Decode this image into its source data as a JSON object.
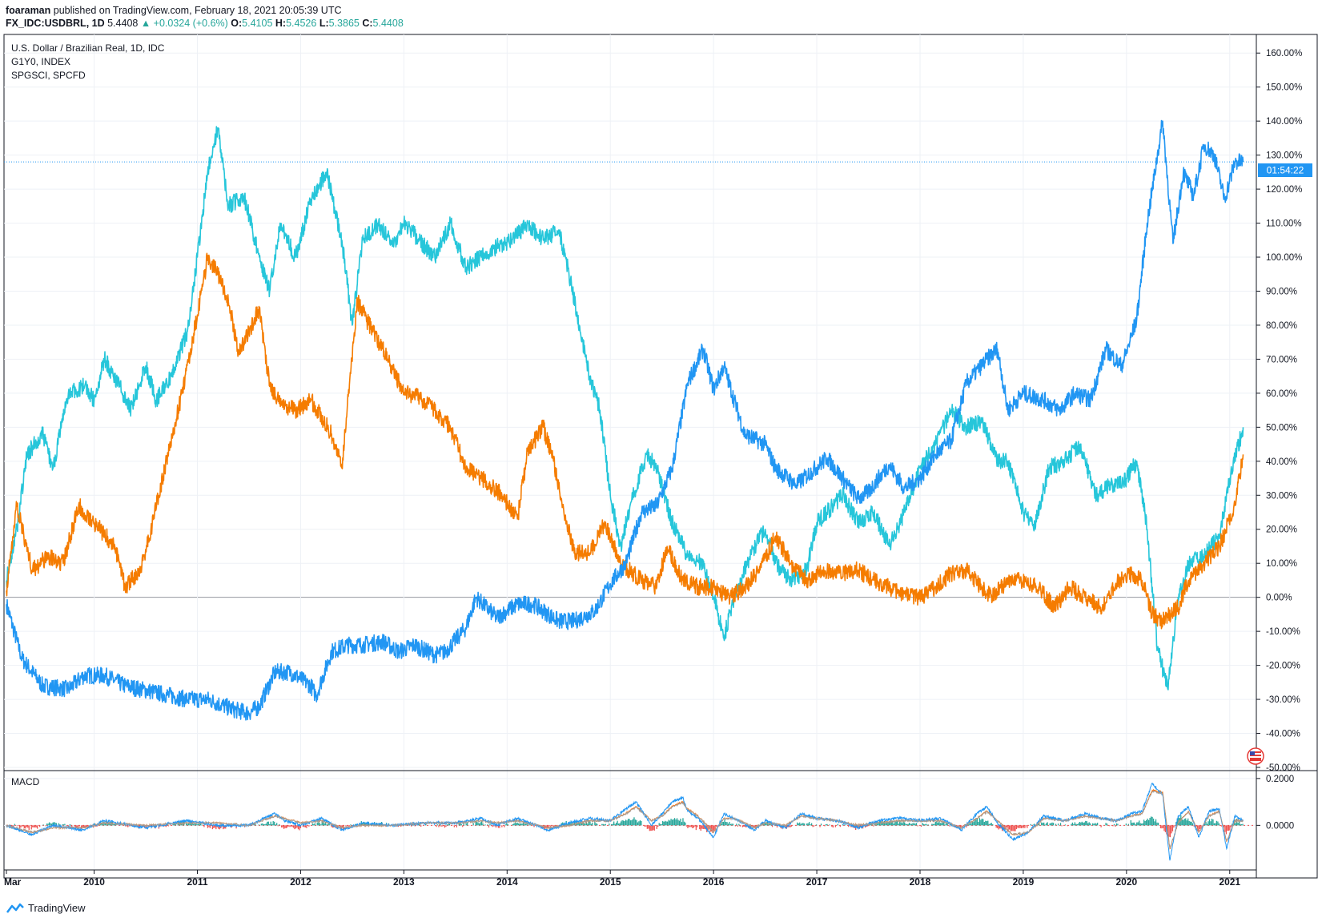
{
  "header": {
    "author": "foaraman",
    "published_text": "published on TradingView.com, February 18, 2021 20:05:39 UTC",
    "symbol": "FX_IDC:USDBRL, 1D",
    "last": "5.4408",
    "change": "▲ +0.0324 (+0.6%)",
    "o_label": "O:",
    "o_value": "5.4105",
    "h_label": "H:",
    "h_value": "5.4526",
    "l_label": "L:",
    "l_value": "5.3865",
    "c_label": "C:",
    "c_value": "5.4408"
  },
  "legend": {
    "main": "U.S. Dollar / Brazilian Real, 1D, IDC",
    "comp1": "G1Y0, INDEX",
    "comp2": "SPGSCI, SPCFD"
  },
  "price_tag": "01:54:22",
  "macd_label": "MACD",
  "macd_ticks": [
    "0.2000",
    "0.0000"
  ],
  "footer": {
    "brand": "TradingView"
  },
  "colors": {
    "usdbrl": "#2196f3",
    "g1y0": "#f57c00",
    "spgsci": "#26c6da",
    "macd_line": "#2196f3",
    "signal_line": "#ff6d00",
    "hist_pos": "#26a69a",
    "hist_neg": "#ef5350"
  },
  "chart_data": {
    "type": "line",
    "title": "U.S. Dollar / Brazilian Real, 1D, IDC",
    "x_tick_labels": [
      "Mar",
      "2010",
      "2011",
      "2012",
      "2013",
      "2014",
      "2015",
      "2016",
      "2017",
      "2018",
      "2019",
      "2020",
      "2021"
    ],
    "x_ticks_year": [
      2009.15,
      2010,
      2011,
      2012,
      2013,
      2014,
      2015,
      2016,
      2017,
      2018,
      2019,
      2020,
      2021
    ],
    "y_tick_values": [
      160,
      150,
      140,
      130,
      120,
      110,
      100,
      90,
      80,
      70,
      60,
      50,
      40,
      30,
      20,
      10,
      0,
      -10,
      -20,
      -30,
      -40,
      -50
    ],
    "y_tick_labels": [
      "160.00%",
      "150.00%",
      "140.00%",
      "130.00%",
      "120.00%",
      "110.00%",
      "100.00%",
      "90.00%",
      "80.00%",
      "70.00%",
      "60.00%",
      "50.00%",
      "40.00%",
      "30.00%",
      "20.00%",
      "10.00%",
      "0.00%",
      "-10.00%",
      "-20.00%",
      "-30.00%",
      "-40.00%",
      "-50.00%"
    ],
    "ylim": [
      -50,
      165
    ],
    "xlim": [
      2009.15,
      2021.25
    ],
    "y_unit": "percent change",
    "grid": true,
    "series": [
      {
        "name": "U.S. Dollar / Brazilian Real, 1D, IDC",
        "color": "#2196f3",
        "x": [
          2009.15,
          2009.3,
          2009.5,
          2009.75,
          2009.9,
          2010.1,
          2010.3,
          2010.6,
          2010.9,
          2011.1,
          2011.35,
          2011.5,
          2011.6,
          2011.75,
          2011.9,
          2012.1,
          2012.15,
          2012.3,
          2012.45,
          2012.6,
          2012.8,
          2012.95,
          2013.1,
          2013.3,
          2013.4,
          2013.6,
          2013.7,
          2013.9,
          2014.1,
          2014.25,
          2014.5,
          2014.65,
          2014.85,
          2015.0,
          2015.15,
          2015.3,
          2015.45,
          2015.6,
          2015.75,
          2015.9,
          2016.0,
          2016.1,
          2016.3,
          2016.5,
          2016.6,
          2016.8,
          2016.95,
          2017.1,
          2017.3,
          2017.4,
          2017.5,
          2017.7,
          2017.85,
          2018.0,
          2018.15,
          2018.3,
          2018.45,
          2018.65,
          2018.75,
          2018.85,
          2019.0,
          2019.2,
          2019.35,
          2019.5,
          2019.65,
          2019.8,
          2019.95,
          2020.0,
          2020.1,
          2020.2,
          2020.35,
          2020.45,
          2020.55,
          2020.65,
          2020.75,
          2020.85,
          2020.95,
          2021.05,
          2021.13
        ],
        "y": [
          -2,
          -18,
          -26,
          -27,
          -23,
          -23,
          -26,
          -28,
          -30,
          -30,
          -33,
          -34,
          -32,
          -22,
          -22,
          -26,
          -29,
          -16,
          -14,
          -14,
          -13,
          -16,
          -14,
          -17,
          -16,
          -9,
          0,
          -6,
          -2,
          -2,
          -7,
          -7,
          -4,
          4,
          10,
          25,
          27,
          38,
          63,
          73,
          61,
          68,
          48,
          45,
          38,
          33,
          37,
          41,
          33,
          29,
          31,
          39,
          32,
          35,
          42,
          46,
          63,
          70,
          73,
          55,
          60,
          58,
          55,
          60,
          58,
          73,
          68,
          72,
          82,
          110,
          140,
          104,
          125,
          118,
          133,
          130,
          117,
          128,
          128
        ]
      },
      {
        "name": "G1Y0, INDEX",
        "color": "#f57c00",
        "x": [
          2009.15,
          2009.25,
          2009.4,
          2009.55,
          2009.7,
          2009.85,
          2010.0,
          2010.2,
          2010.3,
          2010.45,
          2010.55,
          2010.7,
          2010.85,
          2011.0,
          2011.1,
          2011.2,
          2011.3,
          2011.4,
          2011.5,
          2011.6,
          2011.7,
          2011.8,
          2011.95,
          2012.1,
          2012.3,
          2012.4,
          2012.45,
          2012.55,
          2012.7,
          2012.85,
          2013.0,
          2013.15,
          2013.3,
          2013.45,
          2013.6,
          2013.8,
          2013.95,
          2014.1,
          2014.2,
          2014.35,
          2014.45,
          2014.55,
          2014.65,
          2014.8,
          2014.95,
          2015.1,
          2015.3,
          2015.45,
          2015.55,
          2015.7,
          2015.85,
          2016.0,
          2016.15,
          2016.3,
          2016.45,
          2016.6,
          2016.75,
          2016.9,
          2017.05,
          2017.2,
          2017.4,
          2017.55,
          2017.7,
          2017.85,
          2018.0,
          2018.15,
          2018.3,
          2018.45,
          2018.6,
          2018.7,
          2018.85,
          2019.0,
          2019.15,
          2019.3,
          2019.45,
          2019.6,
          2019.75,
          2019.9,
          2020.05,
          2020.15,
          2020.25,
          2020.35,
          2020.5,
          2020.6,
          2020.75,
          2020.9,
          2021.05,
          2021.13
        ],
        "y": [
          2,
          27,
          8,
          12,
          10,
          27,
          22,
          15,
          3,
          8,
          20,
          40,
          60,
          83,
          100,
          95,
          87,
          72,
          78,
          85,
          62,
          57,
          55,
          58,
          48,
          38,
          55,
          87,
          78,
          70,
          60,
          59,
          55,
          50,
          38,
          34,
          30,
          23,
          43,
          50,
          40,
          25,
          13,
          13,
          22,
          10,
          5,
          3,
          15,
          5,
          3,
          3,
          0,
          3,
          8,
          18,
          10,
          5,
          8,
          7,
          8,
          5,
          3,
          1,
          0,
          3,
          7,
          8,
          3,
          0,
          5,
          5,
          3,
          -3,
          3,
          0,
          -3,
          4,
          7,
          5,
          -5,
          -7,
          -3,
          5,
          10,
          15,
          27,
          42
        ]
      },
      {
        "name": "SPGSCI, SPCFD",
        "color": "#26c6da",
        "x": [
          2009.15,
          2009.25,
          2009.35,
          2009.5,
          2009.6,
          2009.75,
          2009.9,
          2010.0,
          2010.1,
          2010.25,
          2010.35,
          2010.5,
          2010.6,
          2010.75,
          2010.9,
          2011.0,
          2011.1,
          2011.2,
          2011.3,
          2011.45,
          2011.6,
          2011.7,
          2011.8,
          2011.95,
          2012.1,
          2012.25,
          2012.4,
          2012.5,
          2012.6,
          2012.75,
          2012.9,
          2013.0,
          2013.15,
          2013.3,
          2013.45,
          2013.6,
          2013.75,
          2013.9,
          2014.05,
          2014.2,
          2014.35,
          2014.5,
          2014.6,
          2014.7,
          2014.8,
          2014.9,
          2015.0,
          2015.1,
          2015.2,
          2015.35,
          2015.45,
          2015.6,
          2015.75,
          2015.9,
          2016.0,
          2016.1,
          2016.2,
          2016.35,
          2016.5,
          2016.6,
          2016.75,
          2016.9,
          2017.0,
          2017.1,
          2017.25,
          2017.4,
          2017.55,
          2017.7,
          2017.85,
          2018.0,
          2018.15,
          2018.3,
          2018.45,
          2018.6,
          2018.75,
          2018.85,
          2019.0,
          2019.1,
          2019.25,
          2019.4,
          2019.55,
          2019.7,
          2019.85,
          2020.0,
          2020.1,
          2020.2,
          2020.3,
          2020.4,
          2020.5,
          2020.6,
          2020.75,
          2020.9,
          2021.0,
          2021.13
        ],
        "y": [
          5,
          20,
          42,
          48,
          38,
          60,
          62,
          58,
          70,
          62,
          55,
          68,
          58,
          65,
          78,
          100,
          125,
          138,
          115,
          118,
          100,
          90,
          110,
          100,
          117,
          125,
          105,
          80,
          105,
          110,
          103,
          110,
          105,
          100,
          110,
          97,
          100,
          103,
          105,
          110,
          105,
          108,
          95,
          80,
          65,
          55,
          30,
          15,
          28,
          42,
          38,
          22,
          12,
          10,
          0,
          -12,
          0,
          12,
          20,
          10,
          5,
          8,
          22,
          25,
          30,
          22,
          25,
          15,
          25,
          38,
          45,
          55,
          50,
          52,
          40,
          40,
          25,
          20,
          38,
          40,
          45,
          30,
          33,
          35,
          40,
          20,
          -15,
          -27,
          0,
          10,
          12,
          18,
          35,
          50
        ]
      }
    ],
    "macd": {
      "title": "MACD",
      "tick_labels": [
        "0.2000",
        "0.0000"
      ],
      "ylim": [
        -0.18,
        0.22
      ],
      "x": [
        2009.15,
        2009.4,
        2009.6,
        2009.9,
        2010.1,
        2010.5,
        2010.9,
        2011.2,
        2011.5,
        2011.75,
        2011.85,
        2012.0,
        2012.2,
        2012.4,
        2012.6,
        2012.9,
        2013.2,
        2013.5,
        2013.75,
        2013.9,
        2014.1,
        2014.4,
        2014.6,
        2014.8,
        2015.0,
        2015.15,
        2015.25,
        2015.4,
        2015.5,
        2015.6,
        2015.7,
        2015.75,
        2015.85,
        2016.0,
        2016.1,
        2016.2,
        2016.4,
        2016.5,
        2016.7,
        2016.85,
        2017.0,
        2017.2,
        2017.4,
        2017.6,
        2017.8,
        2018.0,
        2018.2,
        2018.4,
        2018.55,
        2018.65,
        2018.75,
        2018.9,
        2019.05,
        2019.2,
        2019.4,
        2019.6,
        2019.75,
        2019.9,
        2020.05,
        2020.15,
        2020.25,
        2020.35,
        2020.42,
        2020.5,
        2020.6,
        2020.7,
        2020.8,
        2020.9,
        2020.97,
        2021.05,
        2021.13
      ],
      "macd_values": [
        0.0,
        -0.04,
        0.0,
        -0.02,
        0.02,
        -0.01,
        0.02,
        0.0,
        0.0,
        0.05,
        0.02,
        0.0,
        0.03,
        -0.02,
        0.01,
        0.0,
        0.01,
        0.01,
        0.03,
        0.0,
        0.03,
        -0.02,
        0.01,
        0.03,
        0.02,
        0.07,
        0.1,
        0.0,
        0.05,
        0.1,
        0.12,
        0.06,
        0.03,
        -0.05,
        0.05,
        0.03,
        -0.02,
        0.02,
        -0.01,
        0.05,
        0.03,
        0.02,
        -0.01,
        0.02,
        0.03,
        0.02,
        0.03,
        -0.02,
        0.05,
        0.08,
        0.01,
        -0.06,
        -0.03,
        0.04,
        0.02,
        0.05,
        0.03,
        0.02,
        0.05,
        0.06,
        0.18,
        0.13,
        -0.15,
        0.04,
        0.08,
        -0.05,
        0.06,
        0.07,
        -0.1,
        0.04,
        0.02
      ],
      "signal_values": [
        0.0,
        -0.03,
        -0.01,
        -0.01,
        0.01,
        0.0,
        0.01,
        0.01,
        0.0,
        0.04,
        0.03,
        0.01,
        0.02,
        -0.01,
        0.0,
        0.0,
        0.01,
        0.01,
        0.02,
        0.01,
        0.02,
        -0.01,
        0.0,
        0.02,
        0.02,
        0.05,
        0.08,
        0.02,
        0.04,
        0.08,
        0.1,
        0.07,
        0.04,
        -0.03,
        0.03,
        0.03,
        -0.01,
        0.01,
        0.0,
        0.04,
        0.03,
        0.02,
        0.0,
        0.01,
        0.02,
        0.02,
        0.02,
        -0.01,
        0.03,
        0.06,
        0.02,
        -0.04,
        -0.03,
        0.03,
        0.02,
        0.04,
        0.03,
        0.02,
        0.04,
        0.05,
        0.15,
        0.14,
        -0.1,
        0.01,
        0.06,
        -0.03,
        0.04,
        0.06,
        -0.07,
        0.02,
        0.02
      ]
    }
  }
}
